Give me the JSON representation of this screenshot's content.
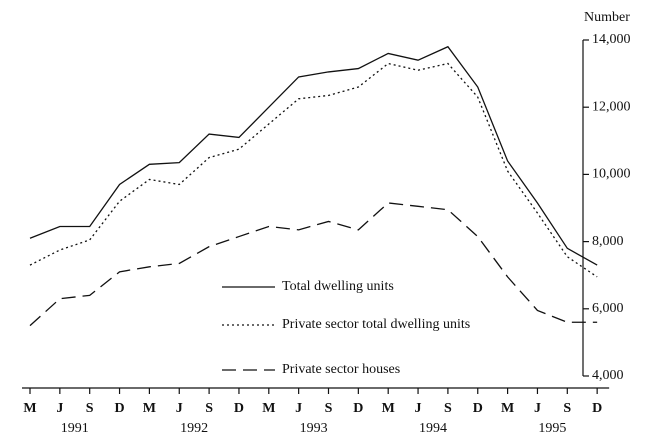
{
  "chart_data": {
    "type": "line",
    "y_axis_label": "Number",
    "categories": [
      "M",
      "J",
      "S",
      "D",
      "M",
      "J",
      "S",
      "D",
      "M",
      "J",
      "S",
      "D",
      "M",
      "J",
      "S",
      "D",
      "M",
      "J",
      "S",
      "D"
    ],
    "years": [
      "1991",
      "1992",
      "1993",
      "1994",
      "1995"
    ],
    "series": [
      {
        "name": "Total dwelling units",
        "color": "#111111",
        "style": "solid",
        "values": [
          8100,
          8450,
          8450,
          9700,
          10300,
          10350,
          11200,
          11100,
          12000,
          12900,
          13050,
          13150,
          13600,
          13400,
          13800,
          12600,
          10400,
          9150,
          7800,
          7300
        ]
      },
      {
        "name": "Private sector total dwelling units",
        "color": "#111111",
        "style": "dotted",
        "values": [
          7300,
          7750,
          8050,
          9200,
          9850,
          9700,
          10500,
          10750,
          11500,
          12250,
          12350,
          12600,
          13300,
          13100,
          13300,
          12300,
          10100,
          8850,
          7550,
          6950
        ]
      },
      {
        "name": "Private sector houses",
        "color": "#111111",
        "style": "dashed",
        "values": [
          5500,
          6300,
          6400,
          7100,
          7250,
          7350,
          7850,
          8150,
          8450,
          8350,
          8600,
          8350,
          9150,
          9050,
          8950,
          8150,
          6950,
          5950,
          5600,
          5600
        ]
      }
    ],
    "ylim": [
      4000,
      14000
    ],
    "yticks": [
      {
        "value": 4000,
        "label": "4,000"
      },
      {
        "value": 6000,
        "label": "6,000"
      },
      {
        "value": 8000,
        "label": "8,000"
      },
      {
        "value": 10000,
        "label": "10,000"
      },
      {
        "value": 12000,
        "label": "12,000"
      },
      {
        "value": 14000,
        "label": "14,000"
      }
    ],
    "grid": false
  }
}
